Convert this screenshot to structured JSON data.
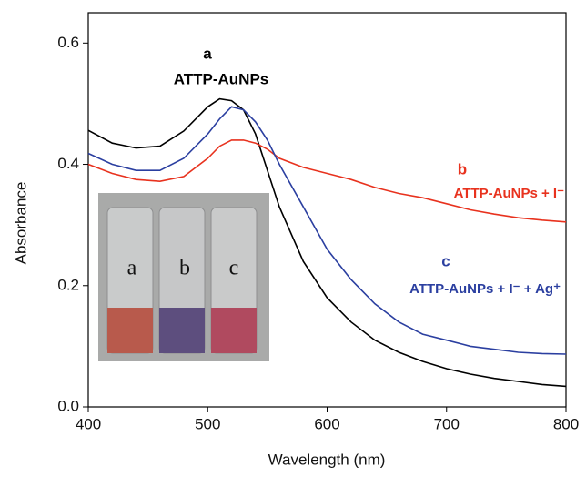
{
  "chart_data": {
    "type": "line",
    "xlabel": "Wavelength (nm)",
    "ylabel": "Absorbance",
    "x": [
      400,
      420,
      440,
      460,
      480,
      500,
      510,
      520,
      530,
      540,
      550,
      560,
      580,
      600,
      620,
      640,
      660,
      680,
      700,
      720,
      740,
      760,
      780,
      800
    ],
    "series": [
      {
        "name": "ATTP-AuNPs",
        "label": "a",
        "color": "#000000",
        "values": [
          0.456,
          0.435,
          0.427,
          0.43,
          0.455,
          0.495,
          0.508,
          0.505,
          0.49,
          0.45,
          0.39,
          0.33,
          0.24,
          0.18,
          0.14,
          0.11,
          0.09,
          0.075,
          0.063,
          0.054,
          0.047,
          0.042,
          0.037,
          0.034
        ]
      },
      {
        "name": "ATTP-AuNPs + I⁻",
        "label": "b",
        "color": "#e8321e",
        "values": [
          0.4,
          0.385,
          0.375,
          0.372,
          0.38,
          0.41,
          0.43,
          0.44,
          0.44,
          0.435,
          0.425,
          0.41,
          0.395,
          0.385,
          0.375,
          0.362,
          0.352,
          0.345,
          0.335,
          0.325,
          0.318,
          0.312,
          0.308,
          0.305
        ]
      },
      {
        "name": "ATTP-AuNPs + I⁻ + Ag⁺",
        "label": "c",
        "color": "#2b3fa0",
        "values": [
          0.418,
          0.4,
          0.39,
          0.39,
          0.41,
          0.45,
          0.475,
          0.495,
          0.49,
          0.47,
          0.44,
          0.4,
          0.33,
          0.26,
          0.21,
          0.17,
          0.14,
          0.12,
          0.11,
          0.1,
          0.095,
          0.09,
          0.088,
          0.087
        ]
      }
    ],
    "inset_labels": [
      "a",
      "b",
      "c"
    ],
    "xlim": [
      400,
      800
    ],
    "xticks": [
      400,
      500,
      600,
      700,
      800
    ],
    "ylim": [
      0,
      0.65
    ],
    "yticks": [
      {
        "value": 0,
        "label": "0.0"
      },
      0.2,
      0.4,
      0.6
    ]
  }
}
